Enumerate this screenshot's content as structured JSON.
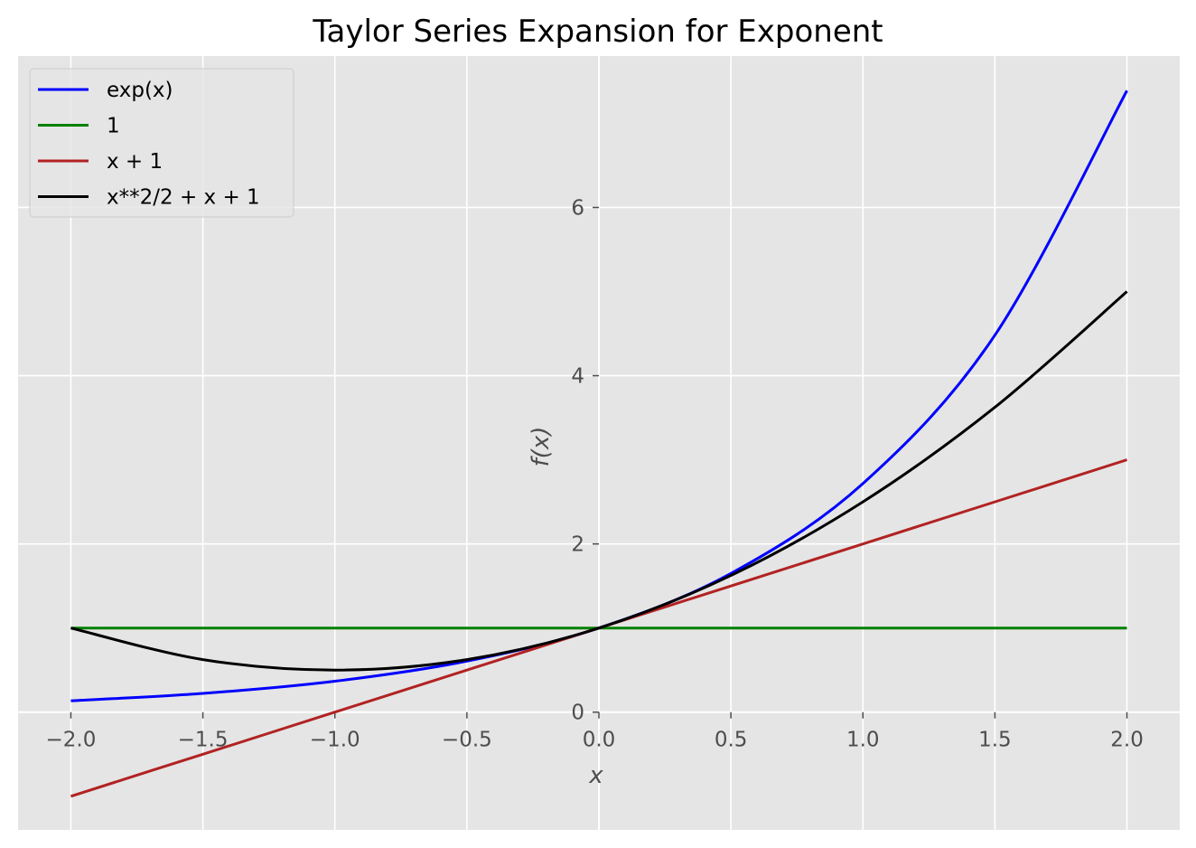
{
  "chart_data": {
    "type": "line",
    "title": "Taylor Series Expansion for Exponent",
    "xlabel": "x",
    "ylabel": "f(x)",
    "xlim": [
      -2.2,
      2.2
    ],
    "ylim": [
      -1.4,
      7.8
    ],
    "xticks": [
      -2.0,
      -1.5,
      -1.0,
      -0.5,
      0.0,
      0.5,
      1.0,
      1.5,
      2.0
    ],
    "xtick_labels": [
      "−2.0",
      "−1.5",
      "−1.0",
      "−0.5",
      "0.0",
      "0.5",
      "1.0",
      "1.5",
      "2.0"
    ],
    "yticks": [
      0,
      2,
      4,
      6
    ],
    "ytick_labels": [
      "0",
      "2",
      "4",
      "6"
    ],
    "grid": true,
    "legend_position": "top-left",
    "background": "#e5e5e5",
    "series": [
      {
        "name": "exp(x)",
        "color": "#0000ff",
        "x": [
          -2.0,
          -1.5,
          -1.0,
          -0.5,
          0.0,
          0.5,
          1.0,
          1.5,
          2.0
        ],
        "y": [
          0.135,
          0.223,
          0.368,
          0.607,
          1.0,
          1.649,
          2.718,
          4.482,
          7.389
        ]
      },
      {
        "name": "1",
        "color": "#008000",
        "x": [
          -2.0,
          -1.5,
          -1.0,
          -0.5,
          0.0,
          0.5,
          1.0,
          1.5,
          2.0
        ],
        "y": [
          1.0,
          1.0,
          1.0,
          1.0,
          1.0,
          1.0,
          1.0,
          1.0,
          1.0
        ]
      },
      {
        "name": "x + 1",
        "color": "#b22222",
        "x": [
          -2.0,
          -1.5,
          -1.0,
          -0.5,
          0.0,
          0.5,
          1.0,
          1.5,
          2.0
        ],
        "y": [
          -1.0,
          -0.5,
          0.0,
          0.5,
          1.0,
          1.5,
          2.0,
          2.5,
          3.0
        ]
      },
      {
        "name": "x**2/2 + x + 1",
        "color": "#000000",
        "x": [
          -2.0,
          -1.5,
          -1.0,
          -0.5,
          0.0,
          0.5,
          1.0,
          1.5,
          2.0
        ],
        "y": [
          1.0,
          0.625,
          0.5,
          0.625,
          1.0,
          1.625,
          2.5,
          3.625,
          5.0
        ]
      }
    ]
  }
}
